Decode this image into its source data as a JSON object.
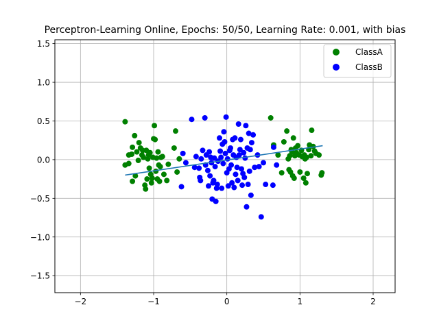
{
  "chart_data": {
    "type": "scatter",
    "title": "Perceptron-Learning Online, Epochs: 50/50, Learning Rate: 0.001, with bias",
    "xlabel": "",
    "ylabel": "",
    "xlim": [
      -2.35,
      2.3
    ],
    "ylim": [
      -1.72,
      1.55
    ],
    "xticks": [
      -2,
      -1,
      0,
      1,
      2
    ],
    "xtick_labels": [
      "−2",
      "−1",
      "0",
      "1",
      "2"
    ],
    "yticks": [
      -1.5,
      -1.0,
      -0.5,
      0.0,
      0.5,
      1.0,
      1.5
    ],
    "ytick_labels": [
      "−1.5",
      "−1.0",
      "−0.5",
      "0.0",
      "0.5",
      "1.0",
      "1.5"
    ],
    "grid": true,
    "legend_position": "top-right",
    "series": [
      {
        "name": "ClassA",
        "color": "#008000",
        "points": [
          [
            -1.39,
            0.49
          ],
          [
            -1.39,
            -0.07
          ],
          [
            -1.34,
            -0.05
          ],
          [
            -1.34,
            0.06
          ],
          [
            -1.3,
            0.07
          ],
          [
            -1.29,
            0.16
          ],
          [
            -1.29,
            -0.28
          ],
          [
            -1.26,
            0.31
          ],
          [
            -1.25,
            -0.21
          ],
          [
            -1.23,
            0.1
          ],
          [
            -1.21,
            -0.01
          ],
          [
            -1.2,
            0.22
          ],
          [
            -1.18,
            0.15
          ],
          [
            -1.16,
            0.06
          ],
          [
            -1.15,
            0.12
          ],
          [
            -1.14,
            0.03
          ],
          [
            -1.12,
            -0.33
          ],
          [
            -1.11,
            -0.38
          ],
          [
            -1.1,
            0.12
          ],
          [
            -1.09,
            -0.25
          ],
          [
            -1.08,
            0.01
          ],
          [
            -1.07,
            0.06
          ],
          [
            -1.06,
            -0.11
          ],
          [
            -1.05,
            0.09
          ],
          [
            -1.04,
            -0.19
          ],
          [
            -1.03,
            -0.3
          ],
          [
            -1.02,
            -0.24
          ],
          [
            -1.01,
            0.03
          ],
          [
            -1.0,
            0.27
          ],
          [
            -0.99,
            0.44
          ],
          [
            -0.98,
            0.26
          ],
          [
            -0.97,
            -0.15
          ],
          [
            -0.96,
            0.02
          ],
          [
            -0.95,
            -0.25
          ],
          [
            -0.94,
            0.1
          ],
          [
            -0.93,
            -0.07
          ],
          [
            -0.92,
            -0.28
          ],
          [
            -0.91,
            -0.09
          ],
          [
            -0.9,
            0.03
          ],
          [
            -0.88,
            0.04
          ],
          [
            -0.86,
            -0.19
          ],
          [
            -0.82,
            -0.27
          ],
          [
            -0.8,
            -0.06
          ],
          [
            -0.72,
            0.15
          ],
          [
            -0.7,
            0.37
          ],
          [
            -0.68,
            -0.16
          ],
          [
            -0.65,
            0.01
          ],
          [
            0.6,
            0.54
          ],
          [
            0.64,
            0.19
          ],
          [
            0.7,
            0.06
          ],
          [
            0.75,
            -0.17
          ],
          [
            0.78,
            0.23
          ],
          [
            0.82,
            0.37
          ],
          [
            0.84,
            0.01
          ],
          [
            0.85,
            -0.13
          ],
          [
            0.86,
            0.05
          ],
          [
            0.87,
            -0.16
          ],
          [
            0.88,
            0.13
          ],
          [
            0.89,
            0.1
          ],
          [
            0.9,
            -0.21
          ],
          [
            0.91,
            0.28
          ],
          [
            0.92,
            -0.24
          ],
          [
            0.93,
            0.05
          ],
          [
            0.94,
            0.15
          ],
          [
            0.95,
            0.09
          ],
          [
            0.97,
            0.18
          ],
          [
            0.99,
            0.06
          ],
          [
            1.0,
            -0.16
          ],
          [
            1.02,
            0.12
          ],
          [
            1.03,
            0.04
          ],
          [
            1.05,
            -0.24
          ],
          [
            1.06,
            0.06
          ],
          [
            1.07,
            0.01
          ],
          [
            1.08,
            -0.3
          ],
          [
            1.09,
            0.03
          ],
          [
            1.1,
            -0.18
          ],
          [
            1.12,
            0.13
          ],
          [
            1.13,
            0.19
          ],
          [
            1.15,
            0.05
          ],
          [
            1.16,
            0.38
          ],
          [
            1.18,
            0.17
          ],
          [
            1.2,
            0.11
          ],
          [
            1.22,
            0.08
          ],
          [
            1.26,
            0.06
          ],
          [
            1.29,
            -0.2
          ],
          [
            1.3,
            -0.17
          ]
        ]
      },
      {
        "name": "ClassB",
        "color": "#0000ff",
        "points": [
          [
            -0.62,
            -0.35
          ],
          [
            -0.6,
            0.08
          ],
          [
            -0.56,
            -0.04
          ],
          [
            -0.48,
            0.52
          ],
          [
            -0.44,
            -0.1
          ],
          [
            -0.42,
            0.04
          ],
          [
            -0.38,
            -0.11
          ],
          [
            -0.37,
            -0.23
          ],
          [
            -0.36,
            -0.27
          ],
          [
            -0.35,
            0.01
          ],
          [
            -0.33,
            0.12
          ],
          [
            -0.3,
            0.54
          ],
          [
            -0.29,
            -0.07
          ],
          [
            -0.28,
            0.06
          ],
          [
            -0.26,
            -0.14
          ],
          [
            -0.25,
            -0.34
          ],
          [
            -0.24,
            0.1
          ],
          [
            -0.23,
            -0.21
          ],
          [
            -0.22,
            0.03
          ],
          [
            -0.21,
            -0.04
          ],
          [
            -0.2,
            -0.51
          ],
          [
            -0.19,
            -0.3
          ],
          [
            -0.18,
            -0.27
          ],
          [
            -0.17,
            0.02
          ],
          [
            -0.16,
            -0.09
          ],
          [
            -0.15,
            -0.54
          ],
          [
            -0.14,
            -0.37
          ],
          [
            -0.13,
            -0.32
          ],
          [
            -0.12,
            -0.02
          ],
          [
            -0.1,
            0.28
          ],
          [
            -0.09,
            0.11
          ],
          [
            -0.08,
            0.03
          ],
          [
            -0.07,
            -0.37
          ],
          [
            -0.06,
            0.2
          ],
          [
            -0.05,
            -0.05
          ],
          [
            -0.04,
            0.36
          ],
          [
            -0.03,
            0.23
          ],
          [
            -0.02,
            0.08
          ],
          [
            -0.01,
            0.55
          ],
          [
            0.0,
            -0.17
          ],
          [
            0.01,
            0.01
          ],
          [
            0.02,
            -0.34
          ],
          [
            0.03,
            -0.12
          ],
          [
            0.04,
            0.12
          ],
          [
            0.05,
            0.15
          ],
          [
            0.06,
            -0.07
          ],
          [
            0.07,
            -0.3
          ],
          [
            0.08,
            0.26
          ],
          [
            0.09,
            0.06
          ],
          [
            0.1,
            -0.36
          ],
          [
            0.11,
            0.28
          ],
          [
            0.12,
            -0.19
          ],
          [
            0.13,
            0.03
          ],
          [
            0.14,
            -0.1
          ],
          [
            0.15,
            -0.27
          ],
          [
            0.16,
            0.46
          ],
          [
            0.17,
            0.06
          ],
          [
            0.18,
            0.13
          ],
          [
            0.19,
            0.26
          ],
          [
            0.2,
            -0.12
          ],
          [
            0.21,
            -0.33
          ],
          [
            0.22,
            -0.18
          ],
          [
            0.23,
            0.09
          ],
          [
            0.24,
            -0.23
          ],
          [
            0.25,
            0.02
          ],
          [
            0.26,
            0.44
          ],
          [
            0.27,
            -0.61
          ],
          [
            0.28,
            0.15
          ],
          [
            0.29,
            -0.32
          ],
          [
            0.3,
            0.34
          ],
          [
            0.31,
            -0.15
          ],
          [
            0.32,
            0.13
          ],
          [
            0.33,
            -0.46
          ],
          [
            0.34,
            0.22
          ],
          [
            0.36,
            0.32
          ],
          [
            0.38,
            -0.1
          ],
          [
            0.42,
            0.06
          ],
          [
            0.44,
            -0.09
          ],
          [
            0.47,
            -0.74
          ],
          [
            0.5,
            -0.04
          ],
          [
            0.53,
            -0.32
          ],
          [
            0.63,
            -0.33
          ],
          [
            0.64,
            0.16
          ],
          [
            0.68,
            -0.07
          ]
        ]
      },
      {
        "name": "",
        "color": "#1f77b4",
        "type": "line",
        "points": [
          [
            -1.39,
            -0.2
          ],
          [
            1.31,
            0.18
          ]
        ]
      }
    ]
  }
}
